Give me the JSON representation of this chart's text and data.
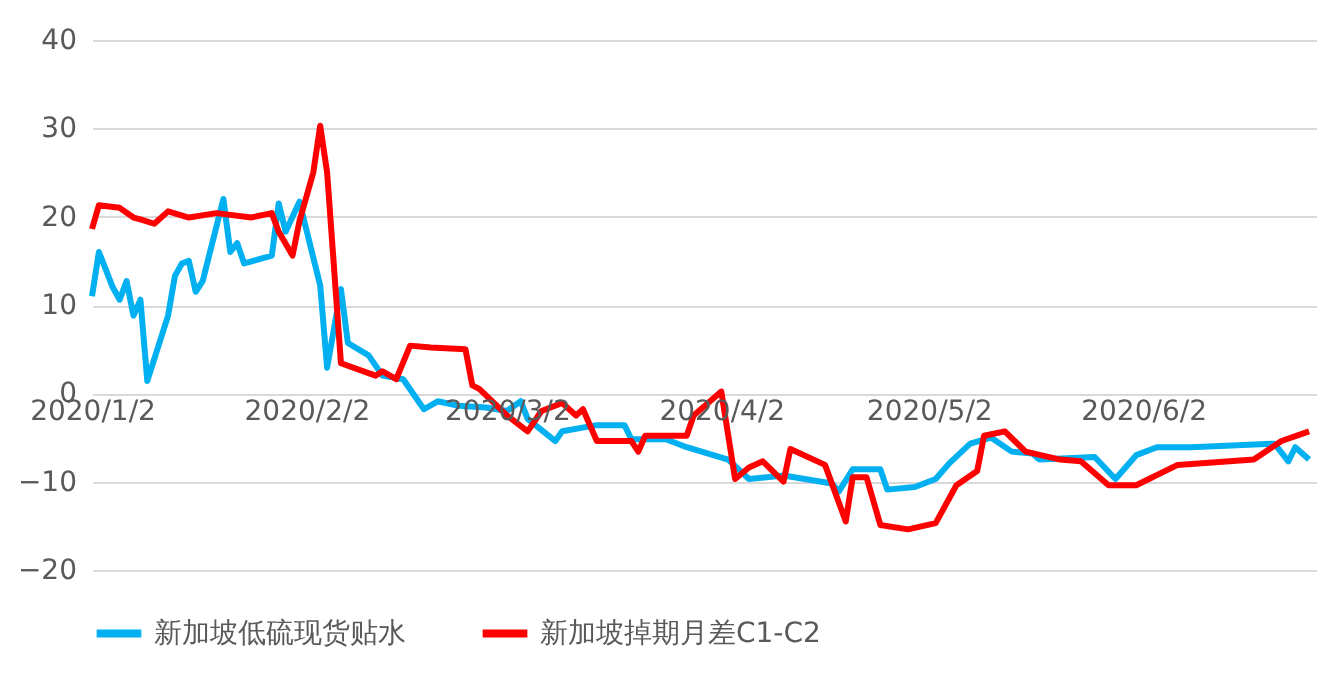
{
  "chart_data": {
    "type": "line",
    "xlim": [
      "2020-01-02",
      "2020-06-27"
    ],
    "xticks": [
      {
        "value": "2020-01-02",
        "label": "2020/1/2"
      },
      {
        "value": "2020-02-02",
        "label": "2020/2/2"
      },
      {
        "value": "2020-03-02",
        "label": "2020/3/2"
      },
      {
        "value": "2020-04-02",
        "label": "2020/4/2"
      },
      {
        "value": "2020-05-02",
        "label": "2020/5/2"
      },
      {
        "value": "2020-06-02",
        "label": "2020/6/2"
      }
    ],
    "ylim": [
      -20,
      40
    ],
    "yticks": [
      -20,
      -10,
      0,
      10,
      20,
      30,
      40
    ],
    "grid": "y",
    "legend": "bottom",
    "line_style": "solid",
    "series": [
      {
        "name": "新加坡低硫现货贴水",
        "color": "#00b0f0",
        "x": [
          "2020-01-02",
          "2020-01-03",
          "2020-01-05",
          "2020-01-06",
          "2020-01-07",
          "2020-01-08",
          "2020-01-09",
          "2020-01-10",
          "2020-01-13",
          "2020-01-14",
          "2020-01-15",
          "2020-01-16",
          "2020-01-17",
          "2020-01-18",
          "2020-01-21",
          "2020-01-22",
          "2020-01-23",
          "2020-01-24",
          "2020-01-28",
          "2020-01-29",
          "2020-01-30",
          "2020-02-01",
          "2020-02-04",
          "2020-02-05",
          "2020-02-07",
          "2020-02-08",
          "2020-02-11",
          "2020-02-13",
          "2020-02-16",
          "2020-02-19",
          "2020-02-21",
          "2020-02-24",
          "2020-02-28",
          "2020-03-02",
          "2020-03-04",
          "2020-03-05",
          "2020-03-09",
          "2020-03-10",
          "2020-03-15",
          "2020-03-19",
          "2020-03-20",
          "2020-03-25",
          "2020-03-28",
          "2020-04-03",
          "2020-04-06",
          "2020-04-11",
          "2020-04-18",
          "2020-04-19",
          "2020-04-21",
          "2020-04-25",
          "2020-04-26",
          "2020-04-30",
          "2020-05-03",
          "2020-05-05",
          "2020-05-08",
          "2020-05-11",
          "2020-05-14",
          "2020-05-17",
          "2020-05-18",
          "2020-05-26",
          "2020-05-29",
          "2020-06-01",
          "2020-06-04",
          "2020-06-09",
          "2020-06-21",
          "2020-06-23",
          "2020-06-24",
          "2020-06-26"
        ],
        "values": [
          11,
          16,
          12,
          10.6,
          12.7,
          8.8,
          10.6,
          1.4,
          8.8,
          13.3,
          14.7,
          15,
          11.5,
          12.7,
          22,
          16,
          17,
          14.7,
          15.6,
          21.5,
          18.3,
          21.7,
          12.2,
          2.9,
          11.8,
          5.7,
          4.3,
          2,
          1.6,
          -1.8,
          -0.9,
          -1.4,
          -1.6,
          -2,
          -0.9,
          -2.9,
          -5.4,
          -4.3,
          -3.6,
          -3.6,
          -5.2,
          -5.2,
          -6.1,
          -7.5,
          -9.7,
          -9.3,
          -10.2,
          -11.1,
          -8.6,
          -8.6,
          -10.9,
          -10.6,
          -9.7,
          -7.9,
          -5.7,
          -5,
          -6.6,
          -6.8,
          -7.5,
          -7.2,
          -9.7,
          -7,
          -6.1,
          -6.1,
          -5.7,
          -7.7,
          -6.1,
          -7.5
        ]
      },
      {
        "name": "新加坡掉期月差C1-C2",
        "color": "#ff0000",
        "x": [
          "2020-01-02",
          "2020-01-03",
          "2020-01-06",
          "2020-01-08",
          "2020-01-09",
          "2020-01-11",
          "2020-01-13",
          "2020-01-16",
          "2020-01-20",
          "2020-01-25",
          "2020-01-28",
          "2020-01-29",
          "2020-01-31",
          "2020-02-01",
          "2020-02-03",
          "2020-02-04",
          "2020-02-05",
          "2020-02-07",
          "2020-02-12",
          "2020-02-13",
          "2020-02-15",
          "2020-02-17",
          "2020-02-20",
          "2020-02-25",
          "2020-02-26",
          "2020-02-27",
          "2020-03-02",
          "2020-03-05",
          "2020-03-07",
          "2020-03-10",
          "2020-03-12",
          "2020-03-13",
          "2020-03-15",
          "2020-03-20",
          "2020-03-21",
          "2020-03-22",
          "2020-03-28",
          "2020-03-29",
          "2020-04-02",
          "2020-04-04",
          "2020-04-06",
          "2020-04-08",
          "2020-04-11",
          "2020-04-12",
          "2020-04-17",
          "2020-04-20",
          "2020-04-21",
          "2020-04-23",
          "2020-04-25",
          "2020-04-29",
          "2020-05-03",
          "2020-05-06",
          "2020-05-09",
          "2020-05-10",
          "2020-05-13",
          "2020-05-16",
          "2020-05-21",
          "2020-05-24",
          "2020-05-28",
          "2020-06-01",
          "2020-06-07",
          "2020-06-18",
          "2020-06-22",
          "2020-06-26"
        ],
        "values": [
          18.6,
          21.3,
          21,
          19.9,
          19.7,
          19.2,
          20.6,
          19.9,
          20.4,
          19.9,
          20.4,
          18.3,
          15.6,
          19.5,
          25,
          30.3,
          25,
          3.4,
          2,
          2.5,
          1.6,
          5.4,
          5.2,
          5,
          0.9,
          0.5,
          -2.5,
          -4.3,
          -2,
          -1.1,
          -2.5,
          -1.8,
          -5.4,
          -5.4,
          -6.6,
          -4.8,
          -4.8,
          -2.5,
          0.2,
          -9.7,
          -8.4,
          -7.7,
          -10,
          -6.3,
          -8.1,
          -14.5,
          -9.5,
          -9.5,
          -14.9,
          -15.4,
          -14.7,
          -10.4,
          -8.8,
          -4.8,
          -4.3,
          -6.6,
          -7.5,
          -7.7,
          -10.4,
          -10.4,
          -8.1,
          -7.5,
          -5.4,
          -4.3
        ]
      }
    ]
  }
}
